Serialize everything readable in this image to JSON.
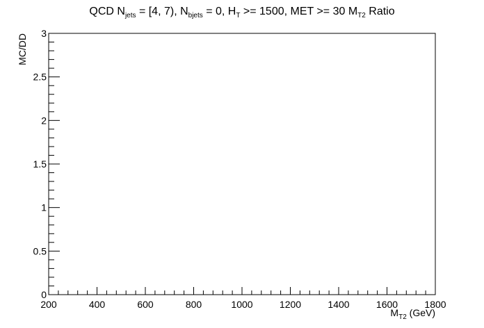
{
  "chart_data": {
    "type": "line",
    "title": "QCD N_{jets} = [4, 7), N_{bjets} = 0, H_{T} >= 1500, MET >= 30 M_{T2} Ratio",
    "title_parts": {
      "p1": "QCD N",
      "s1": "jets",
      "p2": " = [4, 7), N",
      "s2": "bjets",
      "p3": " = 0, H",
      "s3": "T",
      "p4": " >= 1500, MET >= 30 M",
      "s4": "T2",
      "p5": " Ratio"
    },
    "xlabel": {
      "main": "M",
      "sub": "T2",
      "rest": " (GeV)"
    },
    "ylabel": "MC/DD",
    "xlim": [
      200,
      1800
    ],
    "ylim": [
      0,
      3
    ],
    "x_ticks": [
      "200",
      "400",
      "600",
      "800",
      "1000",
      "1200",
      "1400",
      "1600",
      "1800"
    ],
    "y_ticks": [
      "0",
      "0.5",
      "1",
      "1.5",
      "2",
      "2.5",
      "3"
    ],
    "grid": false,
    "series": []
  }
}
